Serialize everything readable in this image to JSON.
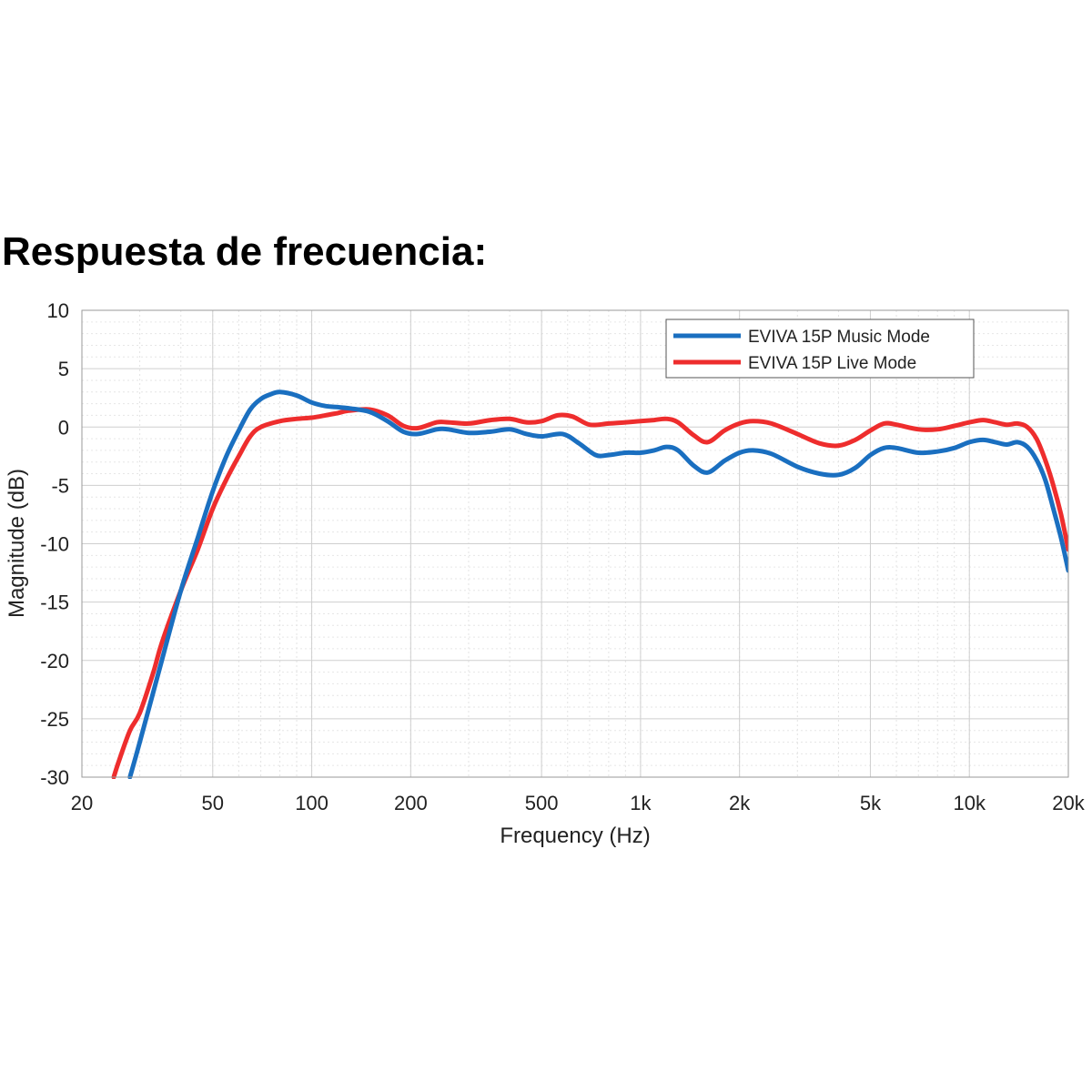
{
  "page": {
    "title": "Respuesta de frecuencia:"
  },
  "chart_data": {
    "type": "line",
    "title": "",
    "xlabel": "Frequency (Hz)",
    "ylabel": "Magnitude (dB)",
    "xscale": "log",
    "xlim": [
      20,
      20000
    ],
    "ylim": [
      -30,
      10
    ],
    "x_ticks": [
      20,
      50,
      100,
      200,
      500,
      1000,
      2000,
      5000,
      10000,
      20000
    ],
    "x_tick_labels": [
      "20",
      "50",
      "100",
      "200",
      "500",
      "1k",
      "2k",
      "5k",
      "10k",
      "20k"
    ],
    "y_ticks": [
      10,
      5,
      0,
      -5,
      -10,
      -15,
      -20,
      -25,
      -30
    ],
    "y_tick_labels": [
      "10",
      "5",
      "0",
      "-5",
      "-10",
      "-15",
      "-20",
      "-25",
      "-30"
    ],
    "grid": true,
    "legend_position": "top-right",
    "series": [
      {
        "name": "EVIVA 15P Music Mode",
        "color": "#1a6fc0",
        "points": [
          [
            28,
            -30
          ],
          [
            30,
            -27
          ],
          [
            35,
            -20
          ],
          [
            40,
            -14
          ],
          [
            45,
            -9.5
          ],
          [
            50,
            -5.5
          ],
          [
            55,
            -2.5
          ],
          [
            60,
            -0.3
          ],
          [
            65,
            1.5
          ],
          [
            70,
            2.4
          ],
          [
            75,
            2.8
          ],
          [
            80,
            3.0
          ],
          [
            90,
            2.7
          ],
          [
            100,
            2.1
          ],
          [
            110,
            1.8
          ],
          [
            120,
            1.7
          ],
          [
            130,
            1.6
          ],
          [
            150,
            1.3
          ],
          [
            170,
            0.5
          ],
          [
            190,
            -0.4
          ],
          [
            210,
            -0.6
          ],
          [
            240,
            -0.2
          ],
          [
            260,
            -0.2
          ],
          [
            300,
            -0.5
          ],
          [
            350,
            -0.4
          ],
          [
            400,
            -0.2
          ],
          [
            450,
            -0.6
          ],
          [
            500,
            -0.8
          ],
          [
            580,
            -0.6
          ],
          [
            650,
            -1.4
          ],
          [
            730,
            -2.4
          ],
          [
            800,
            -2.4
          ],
          [
            900,
            -2.2
          ],
          [
            1000,
            -2.2
          ],
          [
            1100,
            -2.0
          ],
          [
            1200,
            -1.7
          ],
          [
            1300,
            -2.0
          ],
          [
            1450,
            -3.3
          ],
          [
            1600,
            -3.9
          ],
          [
            1800,
            -2.9
          ],
          [
            2000,
            -2.2
          ],
          [
            2200,
            -2.0
          ],
          [
            2500,
            -2.3
          ],
          [
            3000,
            -3.4
          ],
          [
            3500,
            -4.0
          ],
          [
            4000,
            -4.1
          ],
          [
            4500,
            -3.5
          ],
          [
            5000,
            -2.4
          ],
          [
            5500,
            -1.8
          ],
          [
            6000,
            -1.8
          ],
          [
            7000,
            -2.2
          ],
          [
            8000,
            -2.1
          ],
          [
            9000,
            -1.8
          ],
          [
            10000,
            -1.3
          ],
          [
            11000,
            -1.1
          ],
          [
            12000,
            -1.3
          ],
          [
            13000,
            -1.5
          ],
          [
            14000,
            -1.3
          ],
          [
            15000,
            -1.7
          ],
          [
            16000,
            -2.8
          ],
          [
            17000,
            -4.5
          ],
          [
            18000,
            -7
          ],
          [
            19000,
            -9.5
          ],
          [
            20000,
            -12.3
          ]
        ]
      },
      {
        "name": "EVIVA 15P Live Mode",
        "color": "#ee2d2d",
        "points": [
          [
            25,
            -30
          ],
          [
            26,
            -28.5
          ],
          [
            28,
            -26
          ],
          [
            30,
            -24.5
          ],
          [
            33,
            -21
          ],
          [
            35,
            -18.5
          ],
          [
            40,
            -14
          ],
          [
            45,
            -10.5
          ],
          [
            50,
            -7
          ],
          [
            55,
            -4.5
          ],
          [
            60,
            -2.5
          ],
          [
            65,
            -0.8
          ],
          [
            70,
            0
          ],
          [
            80,
            0.5
          ],
          [
            90,
            0.7
          ],
          [
            100,
            0.8
          ],
          [
            110,
            1.0
          ],
          [
            120,
            1.2
          ],
          [
            130,
            1.4
          ],
          [
            150,
            1.5
          ],
          [
            170,
            1.0
          ],
          [
            190,
            0.1
          ],
          [
            210,
            -0.1
          ],
          [
            240,
            0.4
          ],
          [
            260,
            0.4
          ],
          [
            300,
            0.3
          ],
          [
            350,
            0.6
          ],
          [
            400,
            0.7
          ],
          [
            450,
            0.4
          ],
          [
            500,
            0.5
          ],
          [
            560,
            1.0
          ],
          [
            620,
            0.9
          ],
          [
            700,
            0.2
          ],
          [
            800,
            0.3
          ],
          [
            900,
            0.4
          ],
          [
            1000,
            0.5
          ],
          [
            1100,
            0.6
          ],
          [
            1200,
            0.7
          ],
          [
            1300,
            0.4
          ],
          [
            1450,
            -0.7
          ],
          [
            1600,
            -1.3
          ],
          [
            1800,
            -0.3
          ],
          [
            2000,
            0.3
          ],
          [
            2200,
            0.5
          ],
          [
            2500,
            0.3
          ],
          [
            3000,
            -0.6
          ],
          [
            3500,
            -1.4
          ],
          [
            4000,
            -1.6
          ],
          [
            4500,
            -1.1
          ],
          [
            5000,
            -0.3
          ],
          [
            5500,
            0.3
          ],
          [
            6000,
            0.2
          ],
          [
            7000,
            -0.2
          ],
          [
            8000,
            -0.2
          ],
          [
            9000,
            0.1
          ],
          [
            10000,
            0.4
          ],
          [
            11000,
            0.6
          ],
          [
            12000,
            0.4
          ],
          [
            13000,
            0.2
          ],
          [
            14000,
            0.3
          ],
          [
            15000,
            0.0
          ],
          [
            16000,
            -1.0
          ],
          [
            17000,
            -2.8
          ],
          [
            18000,
            -5
          ],
          [
            19000,
            -7.5
          ],
          [
            20000,
            -10.5
          ]
        ]
      }
    ]
  }
}
